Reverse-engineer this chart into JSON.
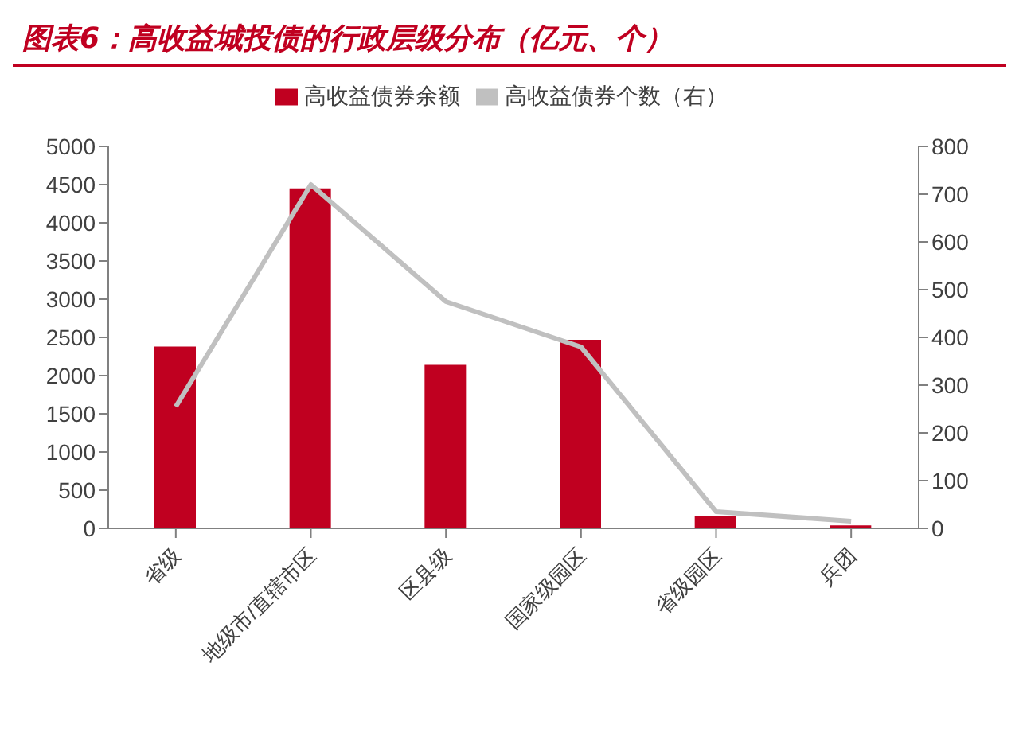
{
  "chart_data": {
    "type": "bar",
    "title": "图表6：高收益城投债的行政层级分布（亿元、个）",
    "categories": [
      "省级",
      "地级市/直辖市区",
      "区县级",
      "国家级园区",
      "省级园区",
      "兵团"
    ],
    "series": [
      {
        "name": "高收益债券余额",
        "color": "#c00020",
        "values": [
          2380,
          4450,
          2140,
          2470,
          160,
          40
        ]
      },
      {
        "name": "高收益债券个数（右）",
        "type": "line",
        "axis": "y2",
        "color": "#c0c0c0",
        "values": [
          255,
          720,
          475,
          380,
          35,
          15
        ]
      }
    ],
    "ylim": [
      0,
      5000
    ],
    "yticks": [
      0,
      500,
      1000,
      1500,
      2000,
      2500,
      3000,
      3500,
      4000,
      4500,
      5000
    ],
    "y2lim": [
      0,
      800
    ],
    "y2ticks": [
      0,
      100,
      200,
      300,
      400,
      500,
      600,
      700,
      800
    ],
    "legend": "top",
    "marker": "none"
  }
}
